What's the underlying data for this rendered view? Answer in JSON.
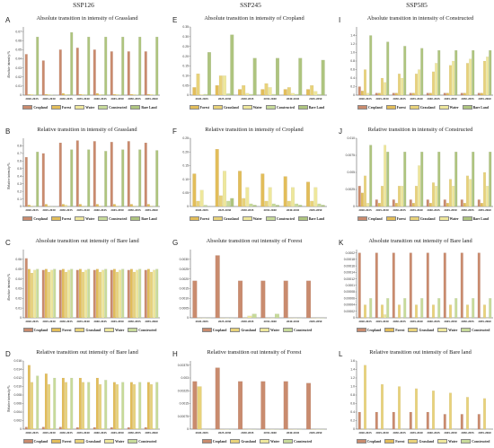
{
  "columns": [
    "SSP126",
    "SSP245",
    "SSP585"
  ],
  "colors": {
    "Cropland": "#c98b6e",
    "Forest": "#e2bd5a",
    "Grassland": "#e8d27a",
    "Water": "#eee79c",
    "Constructed": "#c7da9a",
    "Bare Land": "#aec47f"
  },
  "periods6": [
    "2020-2025",
    "2025-2030",
    "2030-2035",
    "2035-2040",
    "2040-2045",
    "2045-2050"
  ],
  "periods8": [
    "2020-2025",
    "2025-2030",
    "2030-2035",
    "2035-2040",
    "2040-2045",
    "2045-2050",
    "2050-2055",
    "2055-2060"
  ],
  "chart_data": [
    {
      "id": "A",
      "type": "bar",
      "column": 0,
      "title": "Absolute transition in intensity of Grassland",
      "ylabel": "Absolute intensity/%",
      "periods": "periods8",
      "series": [
        {
          "name": "Cropland",
          "values": [
            0.045,
            0.038,
            0.05,
            0.052,
            0.05,
            0.048,
            0.048,
            0.048
          ]
        },
        {
          "name": "Forest",
          "values": [
            0.0008,
            0.001,
            0.002,
            0.001,
            0.002,
            0.001,
            0.001,
            0.001
          ]
        },
        {
          "name": "Water",
          "values": [
            0.001,
            0.001,
            0.001,
            0.001,
            0.001,
            0.001,
            0.001,
            0.001
          ]
        },
        {
          "name": "Constructed",
          "values": [
            0.0004,
            0.0005,
            0.0008,
            0.0006,
            0.0008,
            0.0005,
            0.0005,
            0.0005
          ]
        },
        {
          "name": "Bare Land",
          "values": [
            0.064,
            0.0,
            0.069,
            0.064,
            0.064,
            0.064,
            0.064,
            0.064
          ]
        }
      ],
      "ylim": [
        0,
        0.075
      ],
      "ticks": [
        "0",
        "0.01",
        "0.02",
        "0.03",
        "0.04",
        "0.05",
        "0.06",
        "0.07"
      ]
    },
    {
      "id": "B",
      "type": "bar",
      "column": 0,
      "title": "Relative transition in intensity of Grassland",
      "ylabel": "Relative intensity/%",
      "periods": "periods8",
      "series": [
        {
          "name": "Cropland",
          "values": [
            0.65,
            0.7,
            0.84,
            0.87,
            0.86,
            0.85,
            0.86,
            0.84
          ]
        },
        {
          "name": "Forest",
          "values": [
            0.02,
            0.03,
            0.03,
            0.03,
            0.03,
            0.03,
            0.03,
            0.03
          ]
        },
        {
          "name": "Water",
          "values": [
            0.01,
            0.01,
            0.02,
            0.01,
            0.01,
            0.01,
            0.01,
            0.01
          ]
        },
        {
          "name": "Constructed",
          "values": [
            0.0,
            0.0,
            0.0,
            0.0,
            0.0,
            0.0,
            0.0,
            0.0
          ]
        },
        {
          "name": "Bare Land",
          "values": [
            0.72,
            0.0,
            0.75,
            0.75,
            0.73,
            0.75,
            0.75,
            0.74
          ]
        }
      ],
      "ylim": [
        0,
        0.9
      ],
      "ticks": [
        "0",
        "0.1",
        "0.2",
        "0.3",
        "0.4",
        "0.5",
        "0.6",
        "0.7",
        "0.8"
      ]
    },
    {
      "id": "C",
      "type": "bar",
      "column": 0,
      "title": "Absolute transition out intensity of Bare land",
      "ylabel": "Absolute intensity/%",
      "periods": "periods8",
      "series": [
        {
          "name": "Cropland",
          "values": [
            0.061,
            0.049,
            0.049,
            0.049,
            0.049,
            0.049,
            0.049,
            0.049
          ]
        },
        {
          "name": "Forest",
          "values": [
            0.05,
            0.05,
            0.05,
            0.05,
            0.05,
            0.05,
            0.05,
            0.05
          ]
        },
        {
          "name": "Grassland",
          "values": [
            0.046,
            0.047,
            0.047,
            0.047,
            0.047,
            0.047,
            0.047,
            0.047
          ]
        },
        {
          "name": "Water",
          "values": [
            0.049,
            0.049,
            0.049,
            0.049,
            0.049,
            0.049,
            0.049,
            0.049
          ]
        },
        {
          "name": "Constructed",
          "values": [
            0.05,
            0.05,
            0.05,
            0.05,
            0.05,
            0.05,
            0.05,
            0.05
          ]
        }
      ],
      "ylim": [
        0,
        0.07
      ],
      "ticks": [
        "0",
        "0.01",
        "0.02",
        "0.03",
        "0.04",
        "0.05",
        "0.06"
      ]
    },
    {
      "id": "D",
      "type": "bar",
      "column": 0,
      "title": "Relative transition out intensity of Bare land",
      "ylabel": "Relative intensity/%",
      "periods": "periods8",
      "series": [
        {
          "name": "Cropland",
          "values": [
            0.0005,
            0.0005,
            0.0005,
            0.0004,
            0.0004,
            0.0004,
            0.0004,
            0.0004
          ]
        },
        {
          "name": "Forest",
          "values": [
            0.015,
            0.013,
            0.012,
            0.012,
            0.012,
            0.011,
            0.011,
            0.011
          ]
        },
        {
          "name": "Grassland",
          "values": [
            0.011,
            0.0105,
            0.011,
            0.011,
            0.0105,
            0.0105,
            0.0105,
            0.0105
          ]
        },
        {
          "name": "Water",
          "values": [
            0.0002,
            0.0002,
            0.0002,
            0.0002,
            0.0002,
            0.0002,
            0.0002,
            0.0002
          ]
        },
        {
          "name": "Constructed",
          "values": [
            0.0125,
            0.012,
            0.012,
            0.011,
            0.0115,
            0.011,
            0.011,
            0.011
          ]
        }
      ],
      "ylim": [
        0,
        0.016
      ],
      "ticks": [
        "0",
        "0.002",
        "0.004",
        "0.006",
        "0.008",
        "0.010",
        "0.012",
        "0.014",
        "0.016"
      ]
    },
    {
      "id": "E",
      "type": "bar",
      "column": 1,
      "title": "Absolute transition in intensity of Cropland",
      "ylabel": "",
      "periods": "periods6",
      "series": [
        {
          "name": "Forest",
          "values": [
            0.04,
            0.05,
            0.03,
            0.03,
            0.03,
            0.03
          ]
        },
        {
          "name": "Grassland",
          "values": [
            0.11,
            0.1,
            0.05,
            0.06,
            0.04,
            0.05
          ]
        },
        {
          "name": "Water",
          "values": [
            0.003,
            0.1,
            0.01,
            0.04,
            0.01,
            0.02
          ]
        },
        {
          "name": "Constructed",
          "values": [
            0.005,
            0.008,
            0.005,
            0.005,
            0.005,
            0.005
          ]
        },
        {
          "name": "Bare Land",
          "values": [
            0.22,
            0.31,
            0.19,
            0.19,
            0.19,
            0.18
          ]
        }
      ],
      "ylim": [
        0,
        0.35
      ],
      "ticks": [
        "0",
        "0.05",
        "0.10",
        "0.15",
        "0.20",
        "0.25",
        "0.30",
        "0.35"
      ]
    },
    {
      "id": "F",
      "type": "bar",
      "column": 1,
      "title": "Relative transition in intensity of Cropland",
      "ylabel": "",
      "periods": "periods6",
      "series": [
        {
          "name": "Forest",
          "values": [
            0.12,
            0.21,
            0.13,
            0.12,
            0.11,
            0.09
          ]
        },
        {
          "name": "Grassland",
          "values": [
            0.02,
            0.04,
            0.03,
            0.02,
            0.02,
            0.02
          ]
        },
        {
          "name": "Water",
          "values": [
            0.06,
            0.13,
            0.07,
            0.07,
            0.07,
            0.07
          ]
        },
        {
          "name": "Constructed",
          "values": [
            0.005,
            0.02,
            0.01,
            0.01,
            0.01,
            0.01
          ]
        },
        {
          "name": "Bare Land",
          "values": [
            0.0,
            0.03,
            0.005,
            0.005,
            0.005,
            0.005
          ]
        }
      ],
      "ylim": [
        0,
        0.25
      ],
      "ticks": [
        "0",
        "0.05",
        "0.10",
        "0.15",
        "0.20",
        "0.25"
      ]
    },
    {
      "id": "G",
      "type": "bar",
      "column": 1,
      "title": "Absolute transition out intensity of Forest",
      "ylabel": "",
      "periods": "periods6",
      "series": [
        {
          "name": "Cropland",
          "values": [
            0.0019,
            0.0032,
            0.0019,
            0.0019,
            0.0019,
            0.0019
          ]
        },
        {
          "name": "Grassland",
          "values": [
            0.0,
            0.0,
            0.0,
            0.0,
            0.0,
            0.0
          ]
        },
        {
          "name": "Water",
          "values": [
            0.0,
            0.0,
            0.0001,
            0.0,
            0.0,
            0.0
          ]
        },
        {
          "name": "Constructed",
          "values": [
            0.0,
            0.0,
            0.0002,
            0.0002,
            0.0,
            0.0
          ]
        }
      ],
      "ylim": [
        0,
        0.0035
      ],
      "ticks": [
        "0",
        "0.0005",
        "0.0010",
        "0.0015",
        "0.0020",
        "0.0025",
        "0.0030"
      ]
    },
    {
      "id": "H",
      "type": "bar",
      "column": 1,
      "title": "Relative transition out intensity of Forest",
      "ylabel": "",
      "periods": "periods6",
      "series": [
        {
          "name": "Cropland",
          "values": [
            0.0028,
            0.0036,
            0.0028,
            0.0028,
            0.0028,
            0.0027
          ]
        },
        {
          "name": "Grassland",
          "values": [
            0.0025,
            0.0,
            0.0,
            0.0,
            0.0,
            0.0
          ]
        },
        {
          "name": "Water",
          "values": [
            0.0,
            0.0,
            0.0,
            0.0,
            0.0,
            0.0
          ]
        },
        {
          "name": "Constructed",
          "values": [
            0.0,
            0.0,
            0.0,
            0.0,
            0.0,
            0.0
          ]
        }
      ],
      "ylim": [
        0,
        0.004
      ],
      "ticks": [
        "0",
        "0.00075",
        "0.0015",
        "0.00225",
        "0.003",
        "0.00375"
      ]
    },
    {
      "id": "I",
      "type": "bar",
      "column": 2,
      "title": "Absolute transition in intensity of Constructed",
      "ylabel": "",
      "periods": "periods8",
      "series": [
        {
          "name": "Cropland",
          "values": [
            0.2,
            0.05,
            0.05,
            0.05,
            0.05,
            0.05,
            0.05,
            0.05
          ]
        },
        {
          "name": "Forest",
          "values": [
            0.1,
            0.05,
            0.05,
            0.05,
            0.05,
            0.05,
            0.05,
            0.05
          ]
        },
        {
          "name": "Grassland",
          "values": [
            0.6,
            0.4,
            0.5,
            0.5,
            0.55,
            0.7,
            0.75,
            0.8
          ]
        },
        {
          "name": "Water",
          "values": [
            0.05,
            0.3,
            0.4,
            0.6,
            0.75,
            0.8,
            0.85,
            0.9
          ]
        },
        {
          "name": "Bare Land",
          "values": [
            1.4,
            1.25,
            1.15,
            1.1,
            1.05,
            1.05,
            1.05,
            1.05
          ]
        }
      ],
      "ylim": [
        0,
        1.6
      ],
      "ticks": [
        "0",
        "0.2",
        "0.4",
        "0.6",
        "0.8",
        "1.0",
        "1.2",
        "1.4"
      ]
    },
    {
      "id": "J",
      "type": "bar",
      "column": 2,
      "title": "Relative transition in intensity of Constructed",
      "ylabel": "",
      "periods": "periods8",
      "series": [
        {
          "name": "Cropland",
          "values": [
            0.003,
            0.001,
            0.001,
            0.001,
            0.001,
            0.001,
            0.001,
            0.001
          ]
        },
        {
          "name": "Forest",
          "values": [
            0.002,
            0.0005,
            0.0005,
            0.0005,
            0.0005,
            0.0005,
            0.0005,
            0.0005
          ]
        },
        {
          "name": "Grassland",
          "values": [
            0.0045,
            0.003,
            0.003,
            0.003,
            0.0035,
            0.004,
            0.0045,
            0.005
          ]
        },
        {
          "name": "Water",
          "values": [
            0.0005,
            0.009,
            0.003,
            0.006,
            0.003,
            0.003,
            0.004,
            0.003
          ]
        },
        {
          "name": "Bare Land",
          "values": [
            0.009,
            0.008,
            0.008,
            0.008,
            0.008,
            0.008,
            0.008,
            0.008
          ]
        }
      ],
      "ylim": [
        0,
        0.01
      ],
      "ticks": [
        "0",
        "0.0025",
        "0.005",
        "0.0075",
        "0.010"
      ]
    },
    {
      "id": "K",
      "type": "bar",
      "column": 2,
      "title": "Absolute transition out intensity of Bare land",
      "ylabel": "",
      "periods": "periods8",
      "series": [
        {
          "name": "Cropland",
          "values": [
            0.0002,
            0.0002,
            0.0002,
            0.0002,
            0.0002,
            0.0002,
            0.0002,
            0.0002
          ]
        },
        {
          "name": "Forest",
          "values": [
            0.0,
            0.0,
            0.0,
            0.0,
            0.0,
            0.0,
            0.0,
            0.0
          ]
        },
        {
          "name": "Grassland",
          "values": [
            4e-05,
            4e-05,
            4e-05,
            4e-05,
            4e-05,
            4e-05,
            4e-05,
            4e-05
          ]
        },
        {
          "name": "Water",
          "values": [
            0.0,
            1e-05,
            0.0,
            0.0,
            0.0,
            0.0,
            0.0,
            0.0
          ]
        },
        {
          "name": "Constructed",
          "values": [
            6e-05,
            6e-05,
            6e-05,
            6e-05,
            6e-05,
            6e-05,
            6e-05,
            6e-05
          ]
        }
      ],
      "ylim": [
        0,
        0.00021
      ],
      "ticks": [
        "0",
        "0.00002",
        "0.00004",
        "0.00006",
        "0.00008",
        "0.0001",
        "0.00012",
        "0.00014",
        "0.00016",
        "0.00018",
        "0.0002"
      ]
    },
    {
      "id": "L",
      "type": "bar",
      "column": 2,
      "title": "Relative transition out intensity of Bare land",
      "ylabel": "",
      "periods": "periods8",
      "series": [
        {
          "name": "Cropland",
          "values": [
            0.4,
            0.4,
            0.4,
            0.4,
            0.4,
            0.35,
            0.35,
            0.35
          ]
        },
        {
          "name": "Forest",
          "values": [
            0.0,
            0.0,
            0.0,
            0.0,
            0.0,
            0.0,
            0.0,
            0.0
          ]
        },
        {
          "name": "Grassland",
          "values": [
            1.5,
            1.05,
            1.0,
            0.95,
            0.9,
            0.85,
            0.75,
            0.72
          ]
        },
        {
          "name": "Water",
          "values": [
            0.0,
            0.0,
            0.0,
            0.0,
            0.0,
            0.0,
            0.0,
            0.0
          ]
        },
        {
          "name": "Constructed",
          "values": [
            0.0,
            0.0,
            0.0,
            0.0,
            0.0,
            0.0,
            0.0,
            0.0
          ]
        }
      ],
      "ylim": [
        0,
        1.6
      ],
      "ticks": [
        "0",
        "0.2",
        "0.4",
        "0.6",
        "0.8",
        "1.0",
        "1.2",
        "1.4",
        "1.6"
      ]
    }
  ]
}
